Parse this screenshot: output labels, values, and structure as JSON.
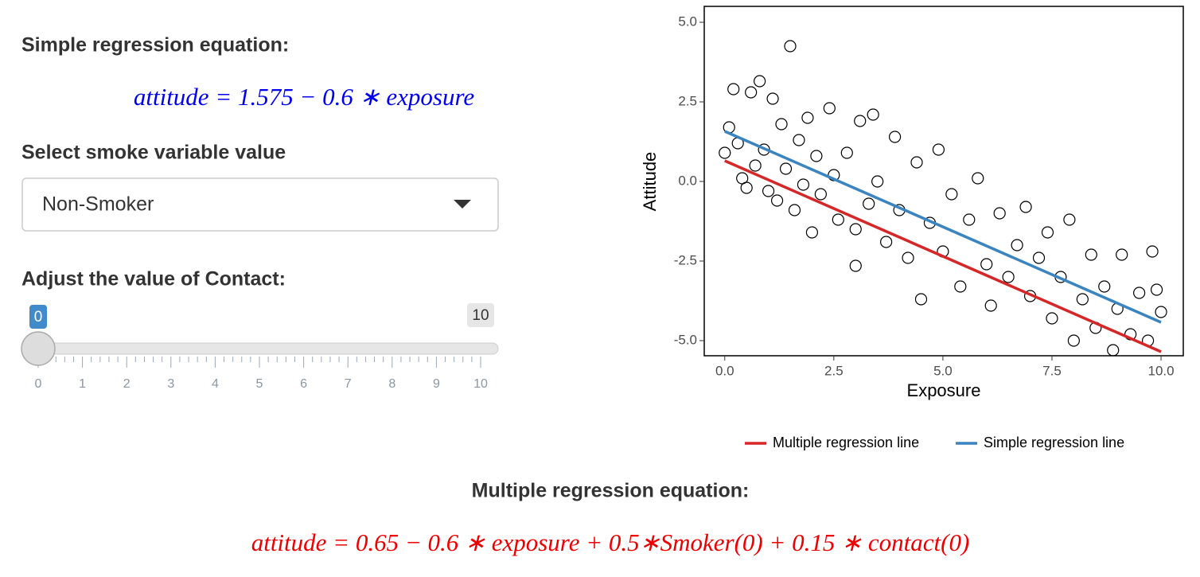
{
  "left_panel": {
    "simple_heading": "Simple regression equation:",
    "simple_equation": "attitude = 1.575 − 0.6 ∗ exposure",
    "select_label": "Select smoke variable value",
    "select_value": "Non-Smoker",
    "slider_label": "Adjust the value of Contact:",
    "slider": {
      "value": 0,
      "max": 10,
      "ticks": [
        0,
        1,
        2,
        3,
        4,
        5,
        6,
        7,
        8,
        9,
        10
      ]
    }
  },
  "bottom": {
    "multiple_heading": "Multiple regression equation:",
    "multiple_equation": "attitude = 0.65 − 0.6 ∗ exposure + 0.5∗Smoker(0) + 0.15 ∗ contact(0)"
  },
  "chart_data": {
    "type": "scatter",
    "x_label": "Exposure",
    "y_label": "Attitude",
    "xlim": [
      -0.47,
      10.51
    ],
    "ylim": [
      -5.475,
      5.5
    ],
    "xticks": [
      {
        "value": 0,
        "label": "0.0"
      },
      2.5,
      {
        "value": 5,
        "label": "5.0"
      },
      7.5,
      {
        "value": 10,
        "label": "10.0"
      }
    ],
    "yticks": [
      {
        "value": -5,
        "label": "-5.0"
      },
      -2.5,
      {
        "value": 0,
        "label": "0.0"
      },
      2.5,
      {
        "value": 5,
        "label": "5.0"
      }
    ],
    "points": {
      "x": [
        0.0,
        0.1,
        0.2,
        0.3,
        0.4,
        0.5,
        0.6,
        0.7,
        0.8,
        0.9,
        1.0,
        1.1,
        1.2,
        1.3,
        1.4,
        1.5,
        1.6,
        1.7,
        1.8,
        1.9,
        2.0,
        2.1,
        2.2,
        2.4,
        2.5,
        2.6,
        2.8,
        3.0,
        3.0,
        3.1,
        3.3,
        3.4,
        3.5,
        3.7,
        3.9,
        4.0,
        4.2,
        4.4,
        4.5,
        4.7,
        4.9,
        5.0,
        5.2,
        5.4,
        5.6,
        5.8,
        6.0,
        6.1,
        6.3,
        6.5,
        6.7,
        6.9,
        7.0,
        7.2,
        7.4,
        7.5,
        7.7,
        7.9,
        8.0,
        8.2,
        8.4,
        8.5,
        8.7,
        8.9,
        9.0,
        9.1,
        9.3,
        9.5,
        9.7,
        9.8,
        10.0,
        9.9
      ],
      "values": [
        0.9,
        1.7,
        2.9,
        1.2,
        0.1,
        -0.2,
        2.8,
        0.5,
        3.15,
        1.0,
        -0.3,
        2.6,
        -0.6,
        1.8,
        0.4,
        4.25,
        -0.9,
        1.3,
        -0.1,
        2.0,
        -1.6,
        0.8,
        -0.4,
        2.3,
        0.2,
        -1.2,
        0.9,
        -1.5,
        -2.65,
        1.9,
        -0.7,
        2.1,
        0.0,
        -1.9,
        1.4,
        -0.9,
        -2.4,
        0.6,
        -3.7,
        -1.3,
        1.0,
        -2.2,
        -0.4,
        -3.3,
        -1.2,
        0.1,
        -2.6,
        -3.9,
        -1.0,
        -3.0,
        -2.0,
        -0.8,
        -3.6,
        -2.4,
        -1.6,
        -4.3,
        -3.0,
        -1.2,
        -5.0,
        -3.7,
        -2.3,
        -4.6,
        -3.3,
        -5.3,
        -4.0,
        -2.3,
        -4.8,
        -3.5,
        -5.0,
        -2.2,
        -4.1,
        -3.4
      ]
    },
    "lines": [
      {
        "name": "Multiple regression line",
        "color": "#d62728",
        "x": [
          0,
          10
        ],
        "values": [
          0.65,
          -5.35
        ]
      },
      {
        "name": "Simple regression line",
        "color": "#3a84bf",
        "x": [
          0,
          10
        ],
        "values": [
          1.575,
          -4.425
        ]
      }
    ]
  }
}
